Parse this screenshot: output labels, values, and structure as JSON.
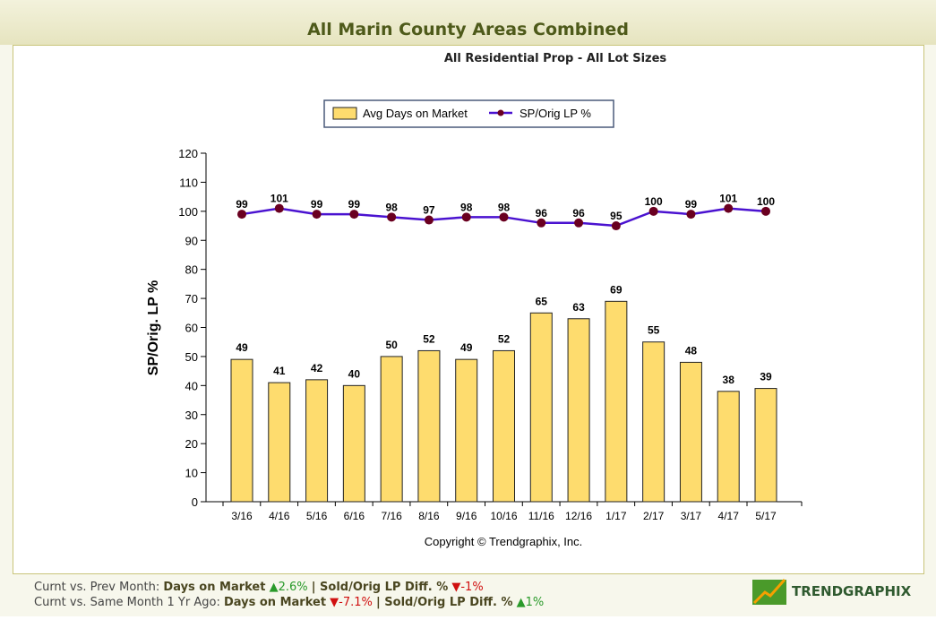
{
  "header": {
    "title": "All Marin County Areas Combined"
  },
  "chart_data": {
    "type": "bar+line",
    "subtitle": "All Residential Prop - All Lot Sizes",
    "ylabel": "SP/Orig. LP %",
    "ylim": [
      0,
      120
    ],
    "yticks": [
      0,
      10,
      20,
      30,
      40,
      50,
      60,
      70,
      80,
      90,
      100,
      110,
      120
    ],
    "categories": [
      "3/16",
      "4/16",
      "5/16",
      "6/16",
      "7/16",
      "8/16",
      "9/16",
      "10/16",
      "11/16",
      "12/16",
      "1/17",
      "2/17",
      "3/17",
      "4/17",
      "5/17"
    ],
    "series": [
      {
        "name": "Avg Days on Market",
        "type": "bar",
        "color": "#fedc6e",
        "values": [
          49,
          41,
          42,
          40,
          50,
          52,
          49,
          52,
          65,
          63,
          69,
          55,
          48,
          38,
          39
        ]
      },
      {
        "name": "SP/Orig LP %",
        "type": "line",
        "color": "#4a12d0",
        "marker": "#6a0020",
        "values": [
          99,
          101,
          99,
          99,
          98,
          97,
          98,
          98,
          96,
          96,
          95,
          100,
          99,
          101,
          100
        ]
      }
    ],
    "legend": "top",
    "grid": false,
    "copyright": "Copyright © Trendgraphix, Inc."
  },
  "footer": {
    "row1": {
      "label": "Curnt vs. Prev Month:",
      "dom": "Days on Market",
      "dom_val": "2.6%",
      "sep": "| Sold/Orig LP Diff. %",
      "lp_val": "-1%"
    },
    "row2": {
      "label": "Curnt vs. Same Month 1 Yr Ago:",
      "dom": "Days on Market",
      "dom_val": "-7.1%",
      "sep": "| Sold/Orig LP Diff. %",
      "lp_val": "1%"
    },
    "logo": "TRENDGRAPHIX"
  }
}
